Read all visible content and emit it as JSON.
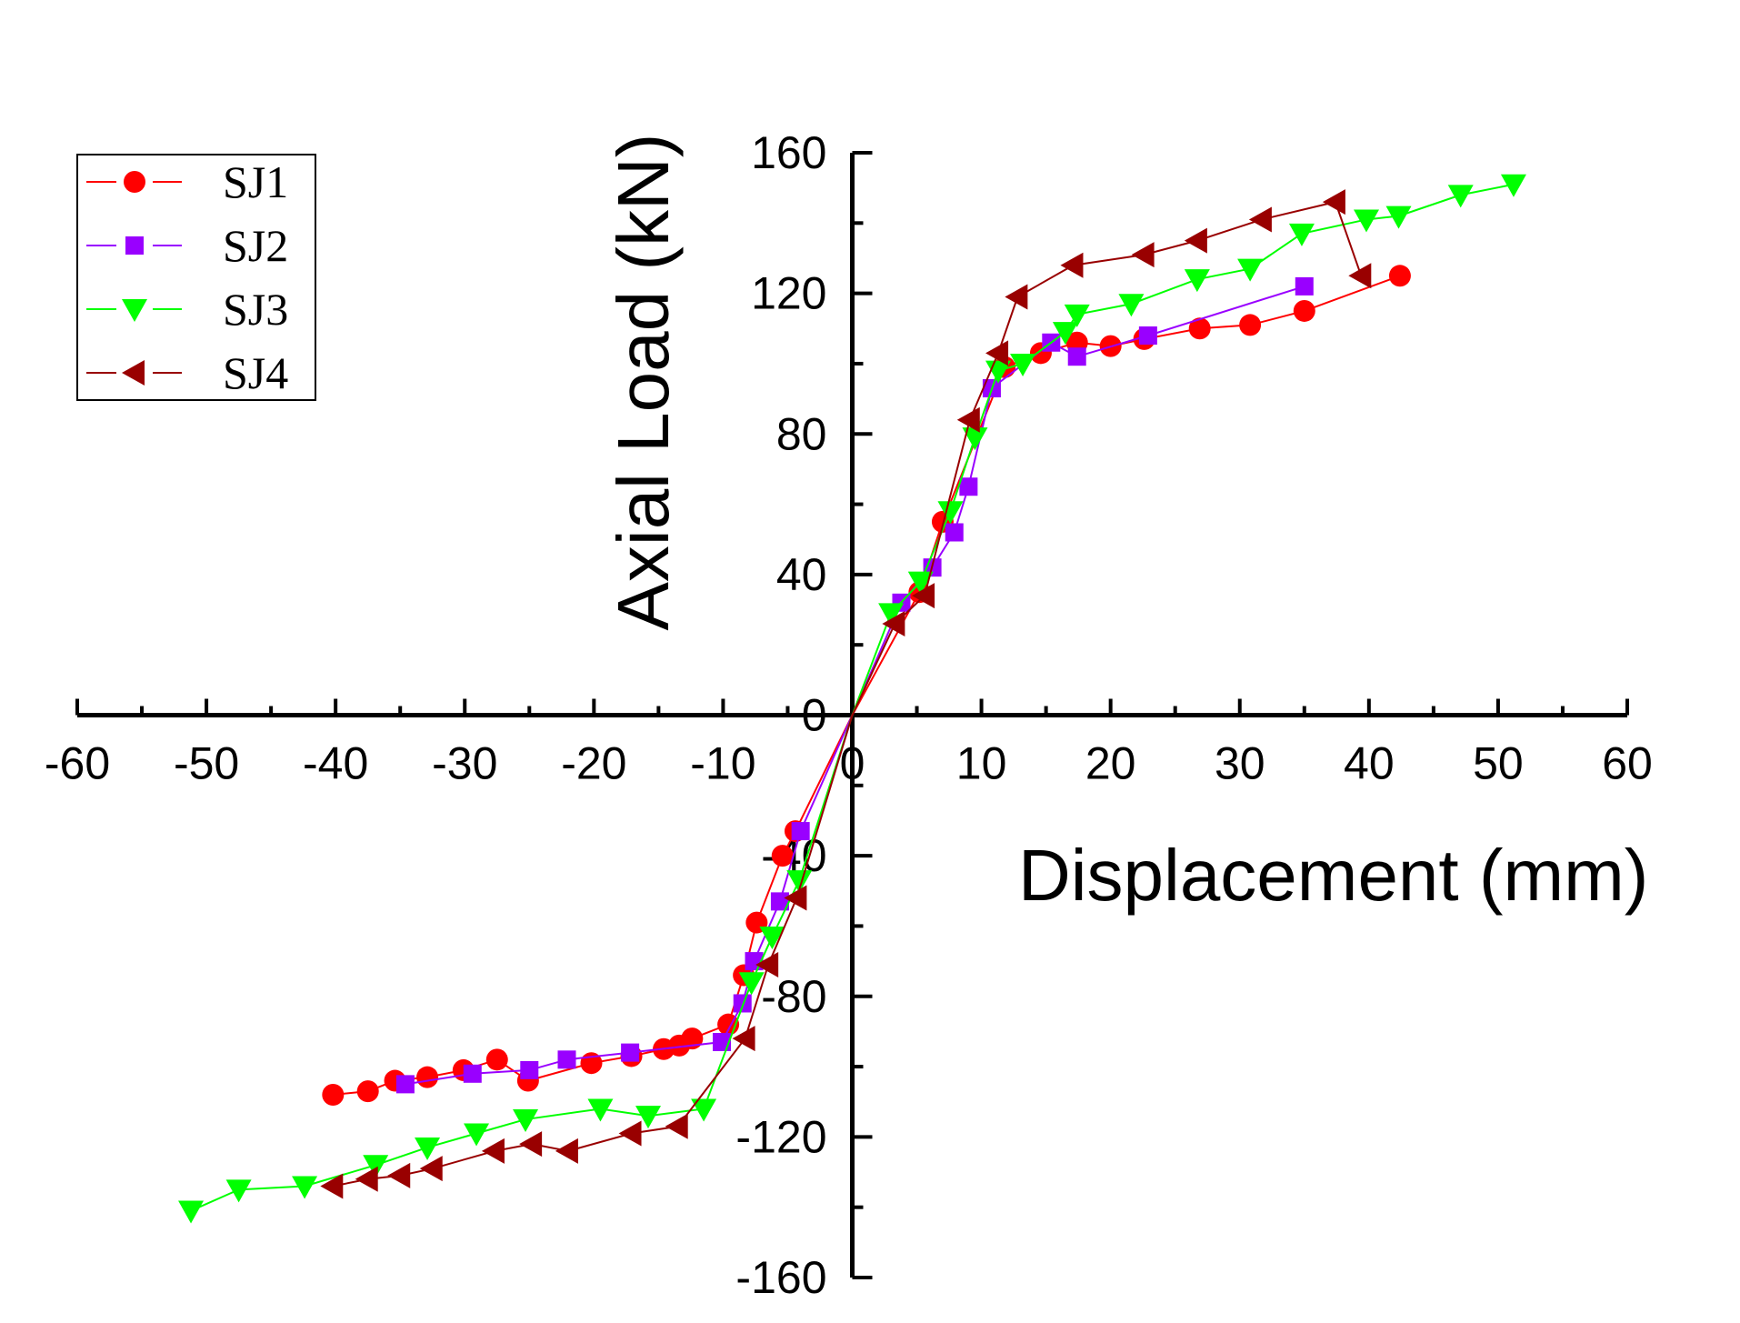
{
  "chart_data": {
    "type": "line",
    "xlabel": "Displacement (mm)",
    "ylabel": "Axial Load (kN)",
    "xlim": [
      -60,
      60
    ],
    "ylim": [
      -160,
      160
    ],
    "x_ticks": [
      -60,
      -50,
      -40,
      -30,
      -20,
      -10,
      0,
      10,
      20,
      30,
      40,
      50,
      60
    ],
    "y_ticks": [
      -160,
      -120,
      -80,
      -40,
      0,
      40,
      80,
      120,
      160
    ],
    "legend_position": "top-left",
    "series": [
      {
        "name": "SJ1",
        "color": "#ff0000",
        "marker": "circle",
        "points": [
          [
            -40.2,
            -108
          ],
          [
            -37.5,
            -107
          ],
          [
            -35.4,
            -104
          ],
          [
            -32.9,
            -103
          ],
          [
            -30.1,
            -101
          ],
          [
            -27.5,
            -98
          ],
          [
            -25.1,
            -104
          ],
          [
            -20.2,
            -99
          ],
          [
            -17.1,
            -97
          ],
          [
            -14.6,
            -95
          ],
          [
            -13.4,
            -94
          ],
          [
            -12.4,
            -92
          ],
          [
            -9.6,
            -88
          ],
          [
            -8.4,
            -74
          ],
          [
            -7.4,
            -59
          ],
          [
            -5.4,
            -40
          ],
          [
            -4.4,
            -33
          ],
          [
            0,
            0
          ],
          [
            5.2,
            35
          ],
          [
            7.0,
            55
          ],
          [
            11.8,
            99
          ],
          [
            14.6,
            103
          ],
          [
            17.4,
            106
          ],
          [
            20.0,
            105
          ],
          [
            22.6,
            107
          ],
          [
            26.9,
            110
          ],
          [
            30.8,
            111
          ],
          [
            35.0,
            115
          ],
          [
            42.4,
            125
          ]
        ]
      },
      {
        "name": "SJ2",
        "color": "#9900ff",
        "marker": "square",
        "points": [
          [
            -34.6,
            -105
          ],
          [
            -29.4,
            -102
          ],
          [
            -25.0,
            -101
          ],
          [
            -22.1,
            -98
          ],
          [
            -17.2,
            -96
          ],
          [
            -10.1,
            -93
          ],
          [
            -8.5,
            -82
          ],
          [
            -7.6,
            -70
          ],
          [
            -5.6,
            -53
          ],
          [
            -4.0,
            -33
          ],
          [
            0,
            0
          ],
          [
            3.8,
            32
          ],
          [
            6.2,
            42
          ],
          [
            7.9,
            52
          ],
          [
            9.0,
            65
          ],
          [
            10.8,
            93
          ],
          [
            15.4,
            106
          ],
          [
            17.4,
            102
          ],
          [
            22.9,
            108
          ],
          [
            35.0,
            122
          ]
        ]
      },
      {
        "name": "SJ3",
        "color": "#00ff00",
        "marker": "triangle-down",
        "points": [
          [
            -51.2,
            -141
          ],
          [
            -47.5,
            -135
          ],
          [
            -42.4,
            -134
          ],
          [
            -36.9,
            -128
          ],
          [
            -32.9,
            -123
          ],
          [
            -29.1,
            -119
          ],
          [
            -25.3,
            -115
          ],
          [
            -19.5,
            -112
          ],
          [
            -15.8,
            -114
          ],
          [
            -11.5,
            -112
          ],
          [
            -7.8,
            -76
          ],
          [
            -6.2,
            -63
          ],
          [
            -4.1,
            -47
          ],
          [
            0,
            0
          ],
          [
            3.0,
            29
          ],
          [
            5.3,
            38
          ],
          [
            7.6,
            58
          ],
          [
            9.5,
            79
          ],
          [
            11.3,
            98
          ],
          [
            13.2,
            100
          ],
          [
            16.5,
            109
          ],
          [
            17.4,
            114
          ],
          [
            21.6,
            117
          ],
          [
            26.7,
            124
          ],
          [
            30.8,
            127
          ],
          [
            34.8,
            137
          ],
          [
            39.8,
            141
          ],
          [
            42.3,
            142
          ],
          [
            47.1,
            148
          ],
          [
            51.2,
            151
          ]
        ]
      },
      {
        "name": "SJ4",
        "color": "#990000",
        "marker": "triangle-left",
        "points": [
          [
            -40.2,
            -134
          ],
          [
            -37.5,
            -132
          ],
          [
            -35.0,
            -131
          ],
          [
            -32.5,
            -129
          ],
          [
            -27.7,
            -124
          ],
          [
            -24.8,
            -122
          ],
          [
            -22.0,
            -124
          ],
          [
            -17.1,
            -119
          ],
          [
            -13.5,
            -117
          ],
          [
            -8.3,
            -92
          ],
          [
            -6.5,
            -71
          ],
          [
            -4.3,
            -52
          ],
          [
            0,
            0
          ],
          [
            3.3,
            26
          ],
          [
            5.6,
            34
          ],
          [
            9.1,
            84
          ],
          [
            11.3,
            103
          ],
          [
            12.8,
            119
          ],
          [
            17.1,
            128
          ],
          [
            22.6,
            131
          ],
          [
            26.7,
            135
          ],
          [
            31.7,
            141
          ],
          [
            37.4,
            146
          ],
          [
            39.4,
            125
          ]
        ]
      }
    ]
  }
}
